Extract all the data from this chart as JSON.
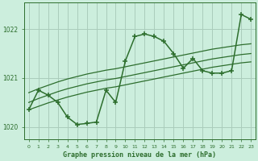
{
  "title": "Graphe pression niveau de la mer (hPa)",
  "background_color": "#cceedd",
  "grid_color": "#aaccbb",
  "line_color": "#2d6e2d",
  "x_values": [
    0,
    1,
    2,
    3,
    4,
    5,
    6,
    7,
    8,
    9,
    10,
    11,
    12,
    13,
    14,
    15,
    16,
    17,
    18,
    19,
    20,
    21,
    22,
    23
  ],
  "main_line": [
    1020.35,
    1020.75,
    1020.65,
    1020.5,
    1020.2,
    1020.05,
    1020.07,
    1020.1,
    1020.75,
    1020.5,
    1021.35,
    1021.85,
    1021.9,
    1021.85,
    1021.75,
    1021.5,
    1021.2,
    1021.4,
    1021.15,
    1021.1,
    1021.1,
    1021.15,
    1022.3,
    1022.2
  ],
  "band_upper": [
    1020.7,
    1020.78,
    1020.85,
    1020.92,
    1020.98,
    1021.03,
    1021.08,
    1021.12,
    1021.16,
    1021.19,
    1021.23,
    1021.27,
    1021.31,
    1021.35,
    1021.39,
    1021.43,
    1021.47,
    1021.51,
    1021.55,
    1021.59,
    1021.62,
    1021.65,
    1021.68,
    1021.7
  ],
  "band_mid": [
    1020.5,
    1020.58,
    1020.65,
    1020.72,
    1020.78,
    1020.83,
    1020.88,
    1020.92,
    1020.96,
    1020.99,
    1021.03,
    1021.07,
    1021.11,
    1021.15,
    1021.19,
    1021.23,
    1021.27,
    1021.31,
    1021.35,
    1021.39,
    1021.42,
    1021.45,
    1021.48,
    1021.5
  ],
  "band_lower": [
    1020.35,
    1020.42,
    1020.49,
    1020.55,
    1020.61,
    1020.66,
    1020.71,
    1020.75,
    1020.79,
    1020.82,
    1020.86,
    1020.9,
    1020.94,
    1020.98,
    1021.02,
    1021.06,
    1021.1,
    1021.14,
    1021.18,
    1021.22,
    1021.25,
    1021.28,
    1021.31,
    1021.33
  ],
  "ylim": [
    1019.75,
    1022.55
  ],
  "yticks": [
    1020,
    1021,
    1022
  ],
  "xlim": [
    -0.5,
    23.5
  ]
}
